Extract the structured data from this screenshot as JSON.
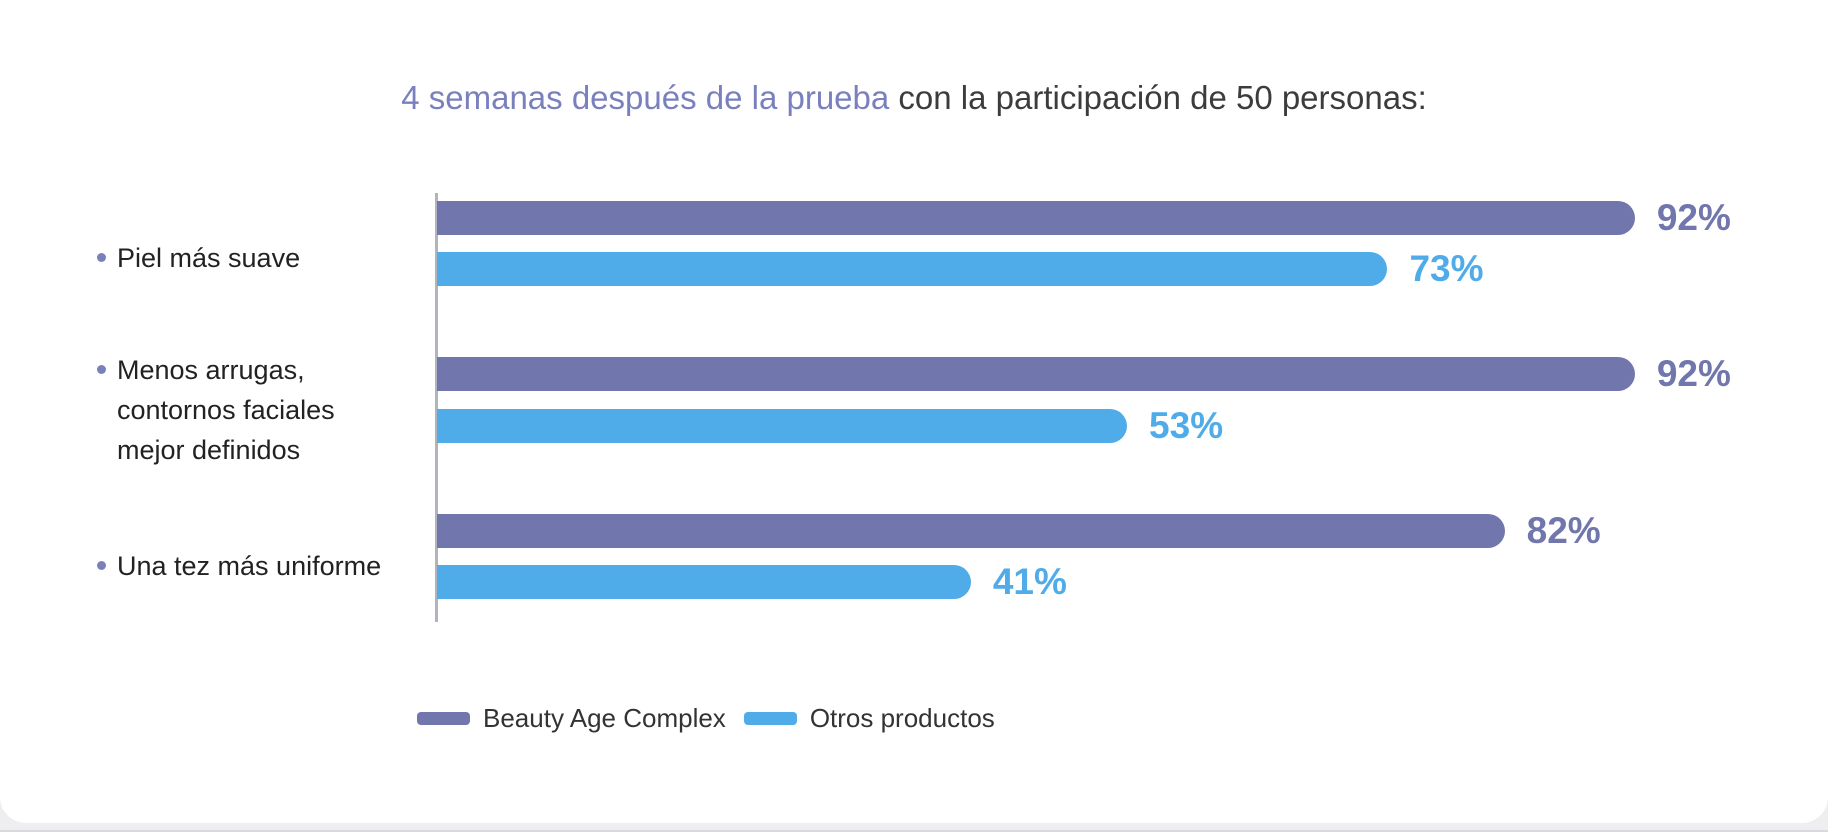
{
  "page": {
    "background": "#eeedf0",
    "card_background": "#ffffff",
    "bottom_line_color": "#d9d8dc"
  },
  "title": {
    "highlight": "4 semanas después de la prueba",
    "rest": " con la participación de 50 personas:"
  },
  "colors": {
    "primary_purple": "#7176ad",
    "secondary_blue": "#4face8",
    "title_highlight": "#7a80be",
    "dark_text": "#3c3c3c",
    "axis_line": "#b0b5bd",
    "bullet": "#7a80b8"
  },
  "chart_data": {
    "type": "bar",
    "orientation": "horizontal",
    "title": "4 semanas después de la prueba con la participación de 50 personas:",
    "categories": [
      "Piel más suave",
      "Menos arrugas,\ncontornos faciales\nmejor definidos",
      "Una tez más uniforme"
    ],
    "series": [
      {
        "name": "Beauty Age Complex",
        "color": "#7176ad",
        "values": [
          92,
          92,
          82
        ]
      },
      {
        "name": "Otros productos",
        "color": "#4face8",
        "values": [
          73,
          53,
          41
        ]
      }
    ],
    "data_labels": [
      [
        "92%",
        "73%"
      ],
      [
        "92%",
        "53%"
      ],
      [
        "82%",
        "41%"
      ]
    ],
    "value_suffix": "%",
    "xlim": [
      0,
      100
    ],
    "grid": false,
    "legend_position": "bottom"
  }
}
